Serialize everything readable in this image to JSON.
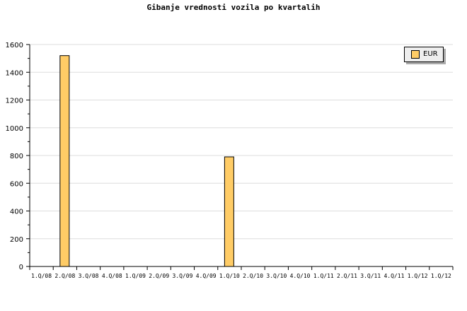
{
  "chart_data": {
    "type": "bar",
    "title": "Gibanje vrednosti vozila po kvartalih",
    "categories": [
      "1.Q/08",
      "2.Q/08",
      "3.Q/08",
      "4.Q/08",
      "1.Q/09",
      "2.Q/09",
      "3.Q/09",
      "4.Q/09",
      "1.Q/10",
      "2.Q/10",
      "3.Q/10",
      "4.Q/10",
      "1.Q/11",
      "2.Q/11",
      "3.Q/11",
      "4.Q/11",
      "1.Q/12",
      "1.Q/12"
    ],
    "series": [
      {
        "name": "EUR",
        "values": [
          0,
          1520,
          0,
          0,
          0,
          0,
          0,
          0,
          790,
          0,
          0,
          0,
          0,
          0,
          0,
          0,
          0,
          0
        ],
        "color": "#ffcc66"
      }
    ],
    "xlabel": "",
    "ylabel": "",
    "ylim": [
      0,
      1600
    ],
    "yticks": [
      0,
      200,
      400,
      600,
      800,
      1000,
      1200,
      1400,
      1600
    ],
    "grid": true,
    "legend_position": "top-right"
  }
}
